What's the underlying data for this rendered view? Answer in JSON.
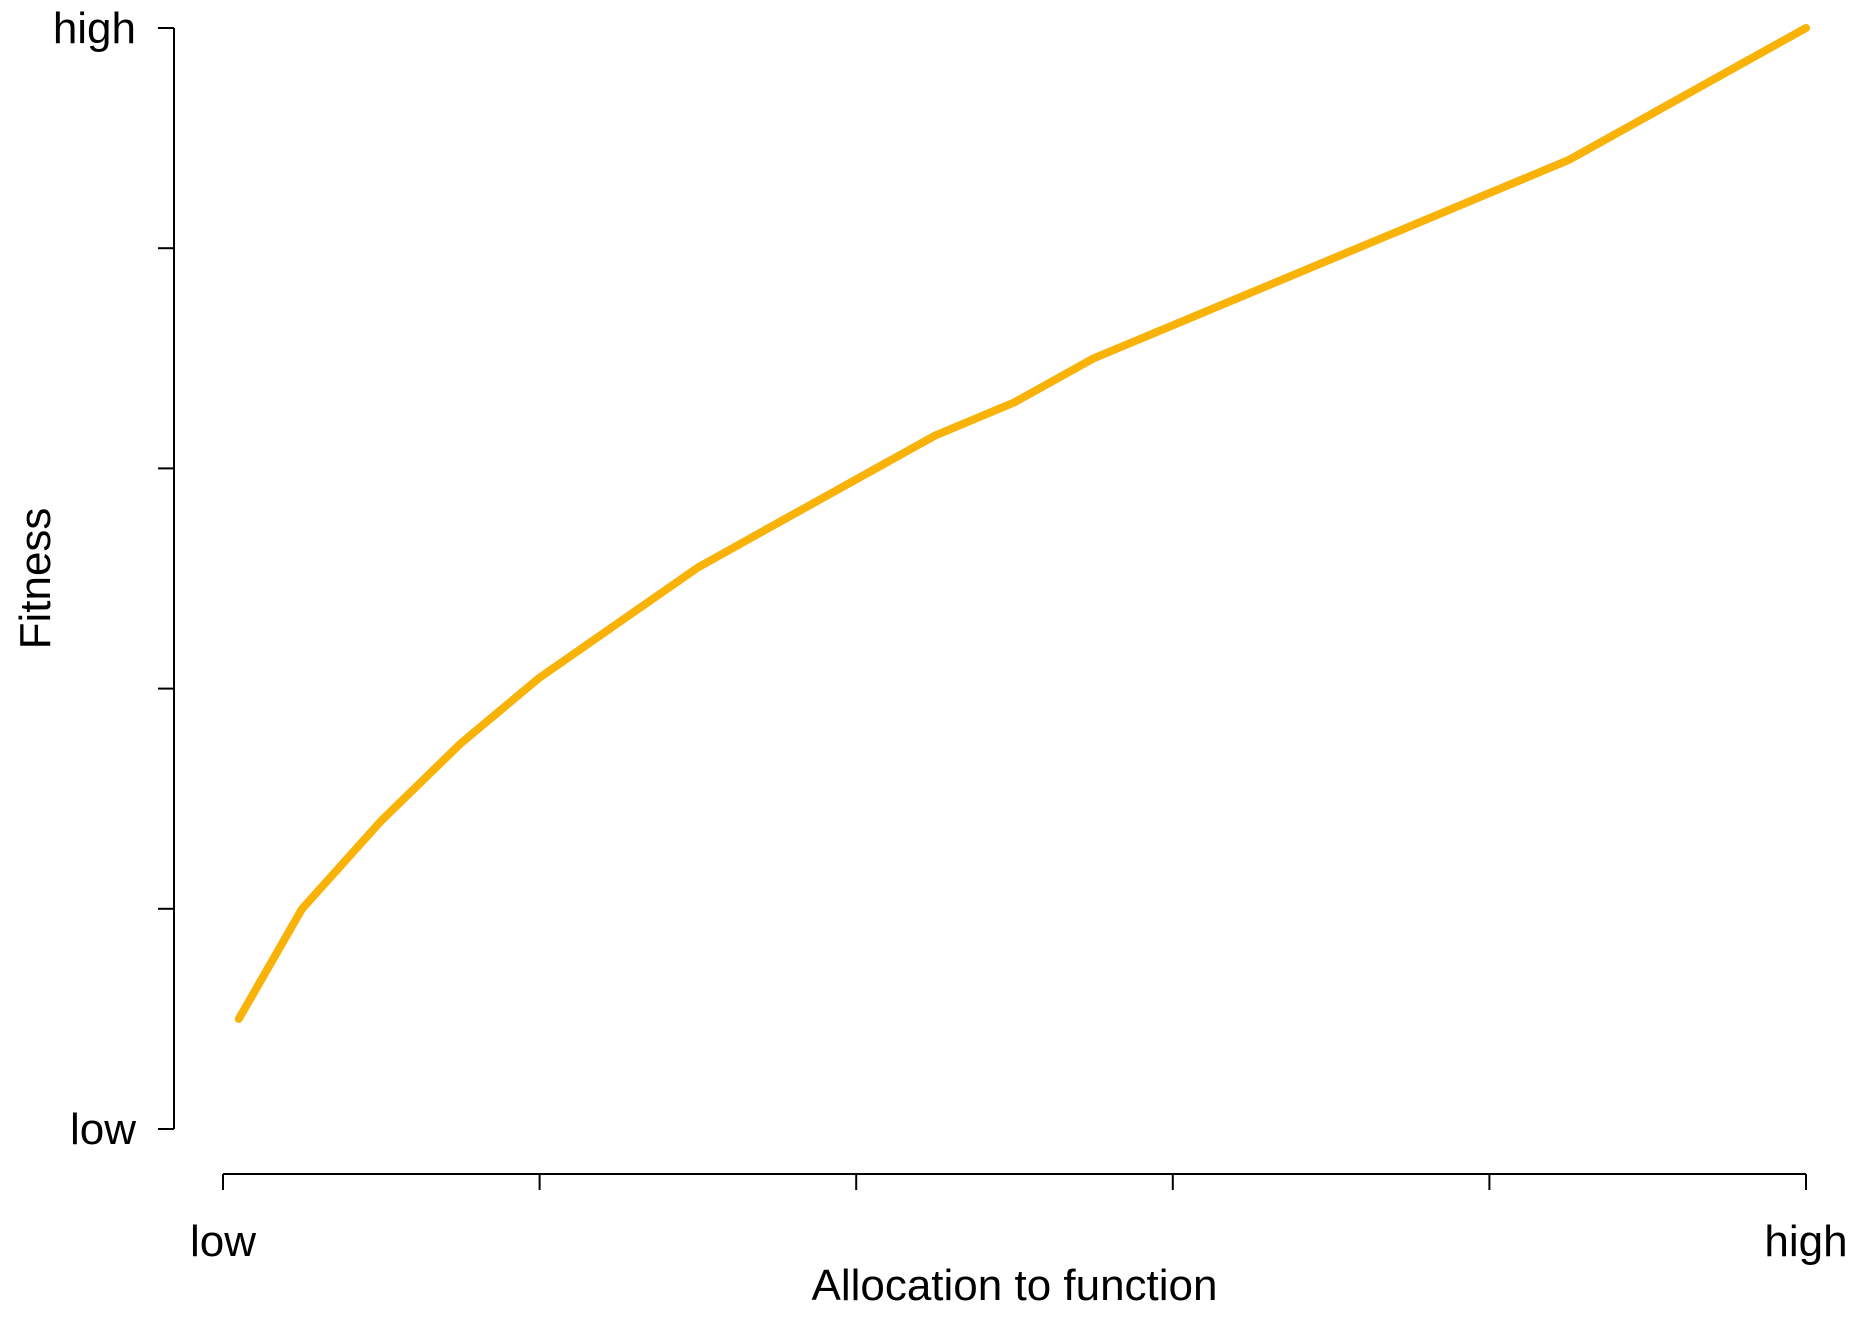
{
  "chart_data": {
    "type": "line",
    "title": "",
    "xlabel": "Allocation to function",
    "ylabel": "Fitness",
    "xlim": [
      0,
      1
    ],
    "ylim": [
      0,
      1
    ],
    "x_ticks": [
      0,
      0.2,
      0.4,
      0.6,
      0.8,
      1.0
    ],
    "y_ticks": [
      0,
      0.2,
      0.4,
      0.6,
      0.8,
      1.0
    ],
    "x_tick_labels": [
      "low",
      "",
      "",
      "",
      "",
      "high"
    ],
    "y_tick_labels": [
      "low",
      "",
      "",
      "",
      "",
      "high"
    ],
    "grid": false,
    "legend": "none",
    "series": [
      {
        "color": "#F9B208",
        "x": [
          0.01,
          0.05,
          0.1,
          0.15,
          0.2,
          0.25,
          0.3,
          0.35,
          0.4,
          0.45,
          0.5,
          0.55,
          0.6,
          0.65,
          0.7,
          0.75,
          0.8,
          0.85,
          0.9,
          0.95,
          1.0
        ],
        "y": [
          0.1,
          0.2,
          0.28,
          0.35,
          0.41,
          0.46,
          0.51,
          0.55,
          0.59,
          0.63,
          0.66,
          0.7,
          0.73,
          0.76,
          0.79,
          0.82,
          0.85,
          0.88,
          0.92,
          0.96,
          1.0
        ]
      }
    ]
  }
}
